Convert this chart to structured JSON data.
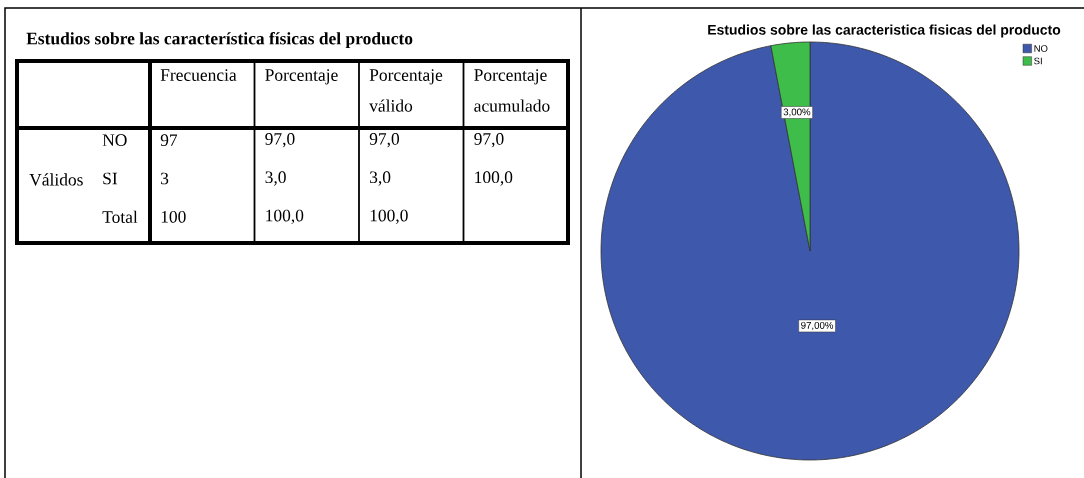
{
  "chart_data": [
    {
      "type": "other",
      "title": "Estudios sobre las característica físicas del producto",
      "categories": [
        "Frecuencia",
        "Porcentaje",
        "Porcentaje válido",
        "Porcentaje acumulado"
      ],
      "y_categories": [
        "NO",
        "SI",
        "Total"
      ],
      "ylabel": "Válidos",
      "cell_labels": [
        [
          "97",
          "97,0",
          "97,0",
          "97,0"
        ],
        [
          "3",
          "3,0",
          "3,0",
          "100,0"
        ],
        [
          "100",
          "100,0",
          "100,0",
          null
        ]
      ]
    },
    {
      "type": "pie",
      "title": "Estudios sobre las caracteristica fisicas del producto",
      "categories": [
        "NO",
        "SI"
      ],
      "values": [
        97,
        3
      ],
      "colors": [
        "#3e58ac",
        "#3ebd4a"
      ],
      "value_labels": [
        "97,00%",
        "3,00%"
      ],
      "legend": "top right"
    }
  ]
}
